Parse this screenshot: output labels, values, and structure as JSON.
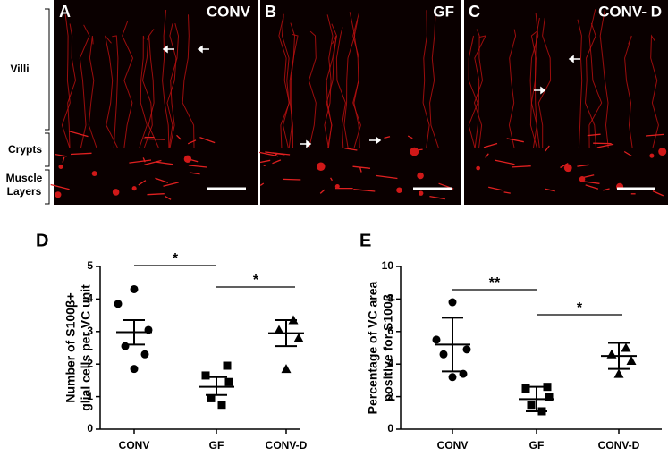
{
  "panels": [
    {
      "letter": "A",
      "label": "CONV"
    },
    {
      "letter": "B",
      "label": "GF"
    },
    {
      "letter": "C",
      "label": "CONV- D"
    }
  ],
  "side_labels": [
    "Villi",
    "Crypts",
    "Muscle",
    "Layers"
  ],
  "chart_data": [
    {
      "type": "scatter",
      "panel_label": "D",
      "ylabel": [
        "Number of S100β+",
        "glial cells per VC unit"
      ],
      "categories": [
        "CONV",
        "GF",
        "CONV-D"
      ],
      "markers": [
        "circle",
        "square",
        "triangle"
      ],
      "values": [
        [
          4.3,
          3.85,
          3.05,
          2.55,
          2.3,
          1.85
        ],
        [
          1.95,
          1.65,
          1.45,
          0.95,
          0.75
        ],
        [
          3.35,
          3.05,
          2.8,
          1.85
        ]
      ],
      "mean": [
        2.98,
        1.3,
        2.95
      ],
      "upper": [
        3.35,
        1.6,
        3.35
      ],
      "lower": [
        2.6,
        1.05,
        2.55
      ],
      "ylim": [
        0,
        5
      ],
      "yticks": [
        0,
        1,
        2,
        3,
        4,
        5
      ],
      "annotations": [
        "*",
        "*"
      ],
      "color": "#000000"
    },
    {
      "type": "scatter",
      "panel_label": "E",
      "ylabel": [
        "Percentage of VC area",
        "positive for S100β"
      ],
      "categories": [
        "CONV",
        "GF",
        "CONV-D"
      ],
      "markers": [
        "circle",
        "square",
        "triangle"
      ],
      "values": [
        [
          7.8,
          5.5,
          4.9,
          4.6,
          3.4,
          3.2
        ],
        [
          2.6,
          2.5,
          2.0,
          1.5,
          1.1
        ],
        [
          5.0,
          4.6,
          4.2,
          3.4
        ]
      ],
      "mean": [
        5.2,
        1.85,
        4.5
      ],
      "upper": [
        6.85,
        2.6,
        5.3
      ],
      "lower": [
        3.55,
        1.1,
        3.7
      ],
      "ylim": [
        0,
        10
      ],
      "yticks": [
        0,
        2,
        4,
        6,
        8,
        10
      ],
      "annotations": [
        "**",
        "*"
      ],
      "color": "#000000"
    }
  ]
}
